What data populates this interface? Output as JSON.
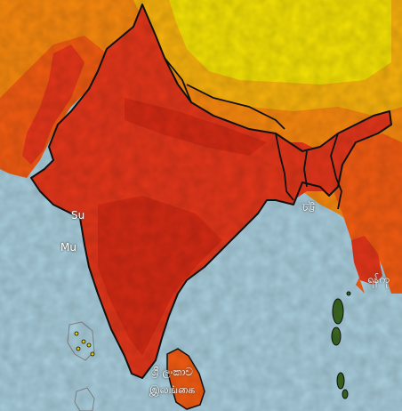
{
  "colors": {
    "ocean": "#a9cedd",
    "india_heat": "#e4361a",
    "india_heat_dark": "#d32a14",
    "warm": "#f25b12",
    "orange": "#f7880f",
    "yellow_orange": "#f7b20d",
    "yellow": "#f3e005",
    "border": "#111111",
    "coast": "#777777"
  },
  "labels": {
    "surat": "Su",
    "mumbai": "Mu",
    "chittagong": "চট্ট",
    "yangon": "ရန်ကု",
    "srilanka_line1": "ශ්‍රී ලංකාව",
    "srilanka_line2": "இலங்கை"
  }
}
